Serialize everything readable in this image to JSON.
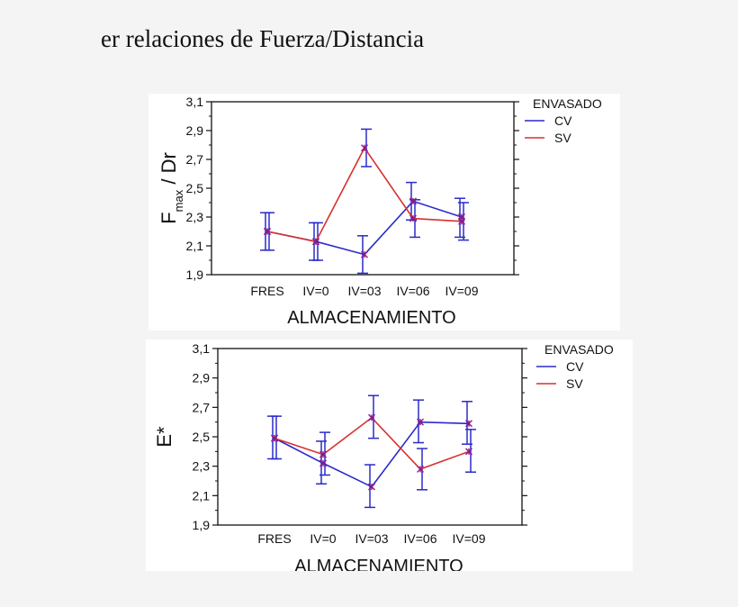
{
  "heading": "er relaciones de Fuerza/Distancia",
  "colors": {
    "cv": "#2a2acc",
    "sv": "#d93030",
    "marker": "#8a1a8a",
    "axis": "#111111"
  },
  "chart_data": [
    {
      "type": "line",
      "ylabel_main": "F",
      "ylabel_sub": "max",
      "ylabel_rest": " / Dr",
      "xlabel": "ALMACENAMIENTO",
      "categories": [
        "FRES",
        "IV=0",
        "IV=03",
        "IV=06",
        "IV=09"
      ],
      "ylim": [
        1.9,
        3.1
      ],
      "yticks": [
        "1,9",
        "2,1",
        "2,3",
        "2,5",
        "2,7",
        "2,9",
        "3,1"
      ],
      "grid": false,
      "legend_position": "top-right",
      "legend_title": "ENVASADO",
      "series": [
        {
          "name": "CV",
          "values": [
            2.2,
            2.13,
            2.04,
            2.41,
            2.3
          ],
          "error_low": [
            2.07,
            2.0,
            1.91,
            2.28,
            2.16
          ],
          "error_high": [
            2.33,
            2.26,
            2.17,
            2.54,
            2.43
          ]
        },
        {
          "name": "SV",
          "values": [
            2.2,
            2.13,
            2.78,
            2.29,
            2.27
          ],
          "error_low": [
            2.07,
            2.0,
            2.65,
            2.16,
            2.14
          ],
          "error_high": [
            2.33,
            2.26,
            2.91,
            2.42,
            2.4
          ]
        }
      ]
    },
    {
      "type": "line",
      "ylabel_main": "E*",
      "ylabel_sub": "",
      "ylabel_rest": "",
      "xlabel": "ALMACENAMIENTO",
      "categories": [
        "FRES",
        "IV=0",
        "IV=03",
        "IV=06",
        "IV=09"
      ],
      "ylim": [
        1.9,
        3.1
      ],
      "yticks": [
        "1,9",
        "2,1",
        "2,3",
        "2,5",
        "2,7",
        "2,9",
        "3,1"
      ],
      "grid": false,
      "legend_position": "top-right",
      "legend_title": "ENVASADO",
      "series": [
        {
          "name": "CV",
          "values": [
            2.49,
            2.32,
            2.16,
            2.6,
            2.59
          ],
          "error_low": [
            2.35,
            2.18,
            2.02,
            2.46,
            2.45
          ],
          "error_high": [
            2.64,
            2.47,
            2.31,
            2.75,
            2.74
          ]
        },
        {
          "name": "SV",
          "values": [
            2.49,
            2.38,
            2.63,
            2.28,
            2.4
          ],
          "error_low": [
            2.35,
            2.24,
            2.49,
            2.14,
            2.26
          ],
          "error_high": [
            2.64,
            2.53,
            2.78,
            2.42,
            2.55
          ]
        }
      ]
    }
  ]
}
